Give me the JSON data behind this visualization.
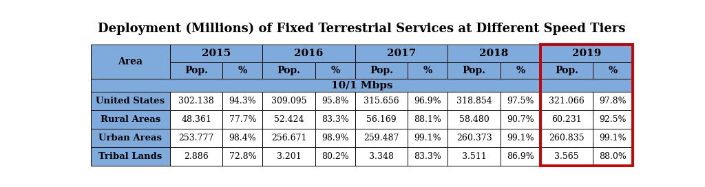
{
  "title": "Deployment (Millions) of Fixed Terrestrial Services at Different Speed Tiers",
  "speed_label": "10/1 Mbps",
  "years": [
    "2015",
    "2016",
    "2017",
    "2018",
    "2019"
  ],
  "col_headers": [
    "Pop.",
    "%",
    "Pop.",
    "%",
    "Pop.",
    "%",
    "Pop.",
    "%",
    "Pop.",
    "%"
  ],
  "row_labels": [
    "United States",
    "Rural Areas",
    "Urban Areas",
    "Tribal Lands"
  ],
  "table_data": [
    [
      "302.138",
      "94.3%",
      "309.095",
      "95.8%",
      "315.656",
      "96.9%",
      "318.854",
      "97.5%",
      "321.066",
      "97.8%"
    ],
    [
      "48.361",
      "77.7%",
      "52.424",
      "83.3%",
      "56.169",
      "88.1%",
      "58.480",
      "90.7%",
      "60.231",
      "92.5%"
    ],
    [
      "253.777",
      "98.4%",
      "256.671",
      "98.9%",
      "259.487",
      "99.1%",
      "260.373",
      "99.1%",
      "260.835",
      "99.1%"
    ],
    [
      "2.886",
      "72.8%",
      "3.201",
      "80.2%",
      "3.348",
      "83.3%",
      "3.511",
      "86.9%",
      "3.565",
      "88.0%"
    ]
  ],
  "header_bg": "#7faadc",
  "white_bg": "#ffffff",
  "title_color": "#000000",
  "highlight_color": "#cc0000",
  "border_color": "#000000",
  "area_label": "Area",
  "title_fontsize": 13,
  "year_fontsize": 11,
  "subheader_fontsize": 10,
  "speed_fontsize": 11,
  "area_label_fontsize": 10,
  "row_label_fontsize": 9.5,
  "data_fontsize": 9
}
